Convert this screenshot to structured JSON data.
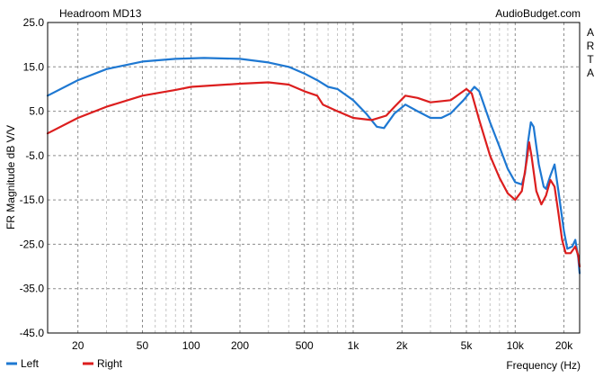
{
  "chart_data": {
    "type": "line",
    "title": "Headroom MD13",
    "source_label": "AudioBudget.com",
    "side_label": [
      "A",
      "R",
      "T",
      "A"
    ],
    "xlabel": "Frequency (Hz)",
    "ylabel": "FR Magnitude dB V/V",
    "x_scale": "log",
    "xlim": [
      13,
      25000
    ],
    "ylim": [
      -45,
      25
    ],
    "x_ticks": [
      {
        "value": 20,
        "label": "20"
      },
      {
        "value": 50,
        "label": "50"
      },
      {
        "value": 100,
        "label": "100"
      },
      {
        "value": 200,
        "label": "200"
      },
      {
        "value": 500,
        "label": "500"
      },
      {
        "value": 1000,
        "label": "1k"
      },
      {
        "value": 2000,
        "label": "2k"
      },
      {
        "value": 5000,
        "label": "5k"
      },
      {
        "value": 10000,
        "label": "10k"
      },
      {
        "value": 20000,
        "label": "20k"
      }
    ],
    "y_ticks": [
      {
        "value": 25,
        "label": "25.0"
      },
      {
        "value": 15,
        "label": "15.0"
      },
      {
        "value": 5,
        "label": "5.0"
      },
      {
        "value": -5,
        "label": "-5.0"
      },
      {
        "value": -15,
        "label": "-15.0"
      },
      {
        "value": -25,
        "label": "-25.0"
      },
      {
        "value": -35,
        "label": "-35.0"
      },
      {
        "value": -45,
        "label": "-45.0"
      }
    ],
    "grid": true,
    "legend_position": "bottom-left",
    "series": [
      {
        "name": "Left",
        "color": "#1e78d2",
        "points": [
          [
            13,
            8.5
          ],
          [
            20,
            12
          ],
          [
            30,
            14.5
          ],
          [
            50,
            16.2
          ],
          [
            80,
            16.8
          ],
          [
            120,
            17.0
          ],
          [
            200,
            16.8
          ],
          [
            300,
            16
          ],
          [
            400,
            15
          ],
          [
            500,
            13.5
          ],
          [
            600,
            12
          ],
          [
            700,
            10.5
          ],
          [
            800,
            10
          ],
          [
            1000,
            7.5
          ],
          [
            1200,
            4.5
          ],
          [
            1400,
            1.5
          ],
          [
            1550,
            1.2
          ],
          [
            1800,
            4.5
          ],
          [
            2100,
            6.5
          ],
          [
            2500,
            5.0
          ],
          [
            3000,
            3.5
          ],
          [
            3500,
            3.5
          ],
          [
            4000,
            4.5
          ],
          [
            4800,
            7.5
          ],
          [
            5600,
            10.5
          ],
          [
            6000,
            9.5
          ],
          [
            7000,
            2.5
          ],
          [
            8000,
            -3
          ],
          [
            9000,
            -8
          ],
          [
            10000,
            -11
          ],
          [
            11000,
            -11.5
          ],
          [
            11500,
            -9
          ],
          [
            12000,
            -2
          ],
          [
            12500,
            2.5
          ],
          [
            13000,
            1.5
          ],
          [
            14000,
            -7
          ],
          [
            15000,
            -12
          ],
          [
            15500,
            -12.5
          ],
          [
            16500,
            -9.5
          ],
          [
            17500,
            -7
          ],
          [
            18500,
            -13
          ],
          [
            20000,
            -22
          ],
          [
            21000,
            -26
          ],
          [
            22500,
            -25.5
          ],
          [
            23500,
            -24
          ],
          [
            24500,
            -28
          ],
          [
            25000,
            -31.5
          ]
        ]
      },
      {
        "name": "Right",
        "color": "#dc1e1e",
        "points": [
          [
            13,
            0
          ],
          [
            20,
            3.5
          ],
          [
            30,
            6
          ],
          [
            50,
            8.5
          ],
          [
            80,
            9.8
          ],
          [
            100,
            10.5
          ],
          [
            200,
            11.2
          ],
          [
            300,
            11.5
          ],
          [
            400,
            11
          ],
          [
            500,
            9.5
          ],
          [
            600,
            8.5
          ],
          [
            650,
            6.5
          ],
          [
            800,
            5
          ],
          [
            1000,
            3.5
          ],
          [
            1300,
            3.0
          ],
          [
            1600,
            4
          ],
          [
            1800,
            6
          ],
          [
            2100,
            8.5
          ],
          [
            2500,
            8
          ],
          [
            3000,
            7
          ],
          [
            4000,
            7.5
          ],
          [
            5000,
            10
          ],
          [
            5400,
            9
          ],
          [
            6000,
            3
          ],
          [
            7000,
            -5
          ],
          [
            8000,
            -10
          ],
          [
            9000,
            -13.5
          ],
          [
            10000,
            -15
          ],
          [
            11000,
            -13
          ],
          [
            11800,
            -6
          ],
          [
            12200,
            -2
          ],
          [
            12600,
            -5
          ],
          [
            13500,
            -13
          ],
          [
            14500,
            -16
          ],
          [
            15500,
            -14
          ],
          [
            16500,
            -10.5
          ],
          [
            17500,
            -12
          ],
          [
            18500,
            -18
          ],
          [
            19500,
            -24
          ],
          [
            20500,
            -27
          ],
          [
            22000,
            -27
          ],
          [
            23500,
            -25.5
          ],
          [
            24500,
            -27.5
          ],
          [
            25000,
            -30
          ]
        ]
      }
    ]
  }
}
